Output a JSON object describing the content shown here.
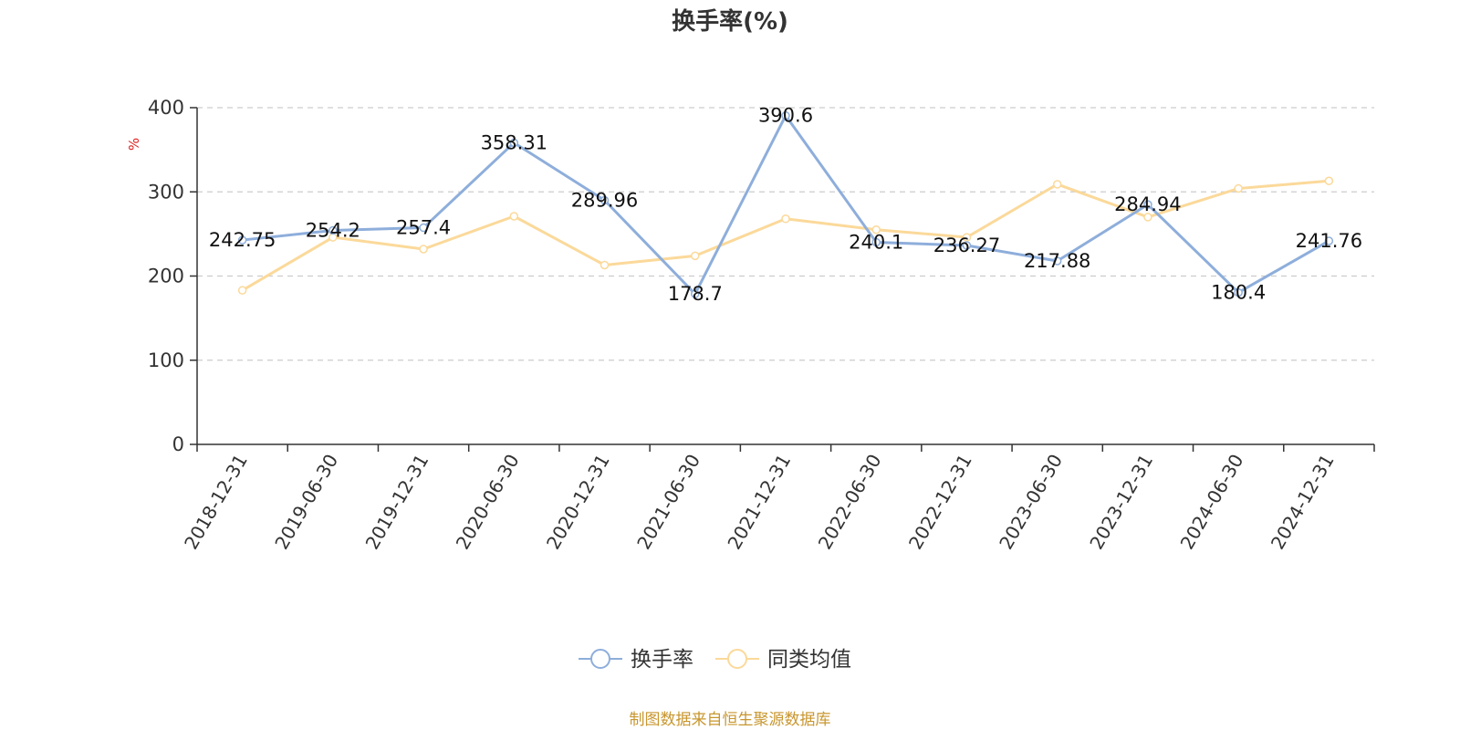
{
  "chart_data": {
    "type": "line",
    "title": "换手率(%)",
    "ylabel": "%",
    "xlabel": "",
    "categories": [
      "2018-12-31",
      "2019-06-30",
      "2019-12-31",
      "2020-06-30",
      "2020-12-31",
      "2021-06-30",
      "2021-12-31",
      "2022-06-30",
      "2022-12-31",
      "2023-06-30",
      "2023-12-31",
      "2024-06-30",
      "2024-12-31"
    ],
    "ylim": [
      0,
      400
    ],
    "yticks": [
      0,
      100,
      200,
      300,
      400
    ],
    "grid": true,
    "legend_position": "bottom-center",
    "series": [
      {
        "name": "换手率",
        "color": "#8eaedb",
        "values": [
          242.75,
          254.2,
          257.4,
          358.31,
          289.96,
          178.7,
          390.6,
          240.1,
          236.27,
          217.88,
          284.94,
          180.4,
          241.76
        ],
        "labels": [
          "242.75",
          "254.2",
          "257.4",
          "358.31",
          "289.96",
          "178.7",
          "390.6",
          "240.1",
          "236.27",
          "217.88",
          "284.94",
          "180.4",
          "241.76"
        ]
      },
      {
        "name": "同类均值",
        "color": "#fbd99a",
        "values": [
          183,
          246,
          232,
          271,
          213,
          224,
          268,
          255,
          246,
          309,
          270,
          304,
          313
        ]
      }
    ]
  },
  "source_note": "制图数据来自恒生聚源数据库"
}
